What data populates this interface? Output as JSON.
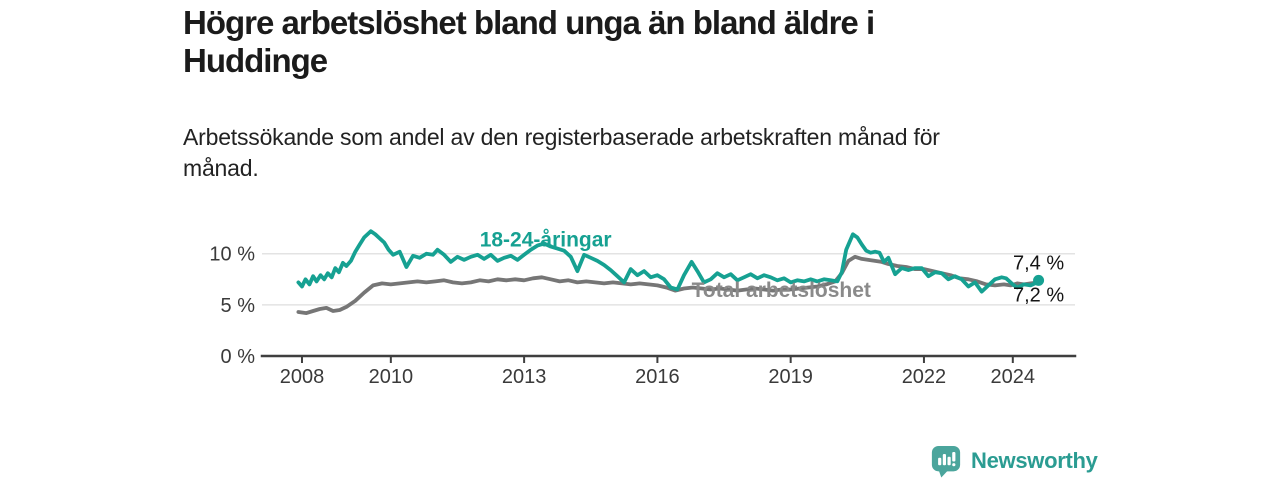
{
  "header": {
    "title_lines": [
      "Högre arbetslöshet bland unga än bland äldre i",
      "Huddinge"
    ],
    "subtitle_lines": [
      "Arbetssökande som andel av den registerbaserade arbetskraften månad för",
      "månad."
    ]
  },
  "branding": {
    "name": "Newsworthy",
    "logo_icon": "bar-chart-speech-bubble-icon",
    "text_color": "#2b9c92",
    "bubble_color": "#4ba59c"
  },
  "chart_data": {
    "type": "line",
    "title": "Högre arbetslöshet bland unga än bland äldre i Huddinge",
    "subtitle": "Arbetssökande som andel av den registerbaserade arbetskraften månad för månad.",
    "x_axis": {
      "range": [
        2007.1,
        2025.4
      ],
      "ticks": [
        2008,
        2010,
        2013,
        2016,
        2019,
        2022,
        2024
      ]
    },
    "y_axis": {
      "range": [
        0,
        13.3
      ],
      "ticks": [
        0,
        5,
        10
      ],
      "tick_labels": [
        "0 %",
        "5 %",
        "10 %"
      ],
      "gridlines": [
        5,
        10
      ]
    },
    "style": {
      "axis_color": "#3f3f3f",
      "grid_color": "#e3e3e3",
      "tick_label_color": "#3a3a3a",
      "value_label_color": "#141414"
    },
    "legend_position": "inline-labels",
    "series": [
      {
        "id": "total",
        "name": "Total arbetslöshet",
        "color": "#767676",
        "label_color": "#8a8a8a",
        "label_anchor": [
          2016.77,
          5.78
        ],
        "end_label": "7,2 %",
        "end_label_side": "below",
        "end_dot": false,
        "points": [
          [
            2007.92,
            4.3
          ],
          [
            2008.1,
            4.2
          ],
          [
            2008.25,
            4.4
          ],
          [
            2008.4,
            4.6
          ],
          [
            2008.55,
            4.7
          ],
          [
            2008.7,
            4.4
          ],
          [
            2008.85,
            4.5
          ],
          [
            2009.0,
            4.8
          ],
          [
            2009.2,
            5.4
          ],
          [
            2009.4,
            6.2
          ],
          [
            2009.6,
            6.9
          ],
          [
            2009.8,
            7.1
          ],
          [
            2010.0,
            7.0
          ],
          [
            2010.2,
            7.1
          ],
          [
            2010.4,
            7.2
          ],
          [
            2010.6,
            7.3
          ],
          [
            2010.8,
            7.2
          ],
          [
            2011.0,
            7.3
          ],
          [
            2011.2,
            7.4
          ],
          [
            2011.4,
            7.2
          ],
          [
            2011.6,
            7.1
          ],
          [
            2011.8,
            7.2
          ],
          [
            2012.0,
            7.4
          ],
          [
            2012.2,
            7.3
          ],
          [
            2012.4,
            7.5
          ],
          [
            2012.6,
            7.4
          ],
          [
            2012.8,
            7.5
          ],
          [
            2013.0,
            7.4
          ],
          [
            2013.2,
            7.6
          ],
          [
            2013.4,
            7.7
          ],
          [
            2013.6,
            7.5
          ],
          [
            2013.8,
            7.3
          ],
          [
            2014.0,
            7.4
          ],
          [
            2014.2,
            7.2
          ],
          [
            2014.4,
            7.3
          ],
          [
            2014.6,
            7.2
          ],
          [
            2014.8,
            7.1
          ],
          [
            2015.0,
            7.2
          ],
          [
            2015.2,
            7.1
          ],
          [
            2015.4,
            7.0
          ],
          [
            2015.6,
            7.1
          ],
          [
            2015.8,
            7.0
          ],
          [
            2016.0,
            6.9
          ],
          [
            2016.2,
            6.7
          ],
          [
            2016.4,
            6.4
          ],
          [
            2016.6,
            6.6
          ],
          [
            2016.8,
            6.7
          ],
          [
            2017.0,
            6.6
          ],
          [
            2017.2,
            6.5
          ],
          [
            2017.4,
            6.6
          ],
          [
            2017.6,
            6.5
          ],
          [
            2017.8,
            6.4
          ],
          [
            2018.0,
            6.5
          ],
          [
            2018.2,
            6.6
          ],
          [
            2018.4,
            6.5
          ],
          [
            2018.6,
            6.4
          ],
          [
            2018.8,
            6.5
          ],
          [
            2019.0,
            6.5
          ],
          [
            2019.2,
            6.6
          ],
          [
            2019.4,
            6.7
          ],
          [
            2019.6,
            6.8
          ],
          [
            2019.8,
            7.0
          ],
          [
            2020.0,
            7.3
          ],
          [
            2020.15,
            8.1
          ],
          [
            2020.3,
            9.3
          ],
          [
            2020.45,
            9.7
          ],
          [
            2020.6,
            9.5
          ],
          [
            2020.75,
            9.4
          ],
          [
            2020.9,
            9.3
          ],
          [
            2021.05,
            9.2
          ],
          [
            2021.2,
            9.0
          ],
          [
            2021.4,
            8.8
          ],
          [
            2021.6,
            8.7
          ],
          [
            2021.8,
            8.5
          ],
          [
            2022.0,
            8.5
          ],
          [
            2022.2,
            8.3
          ],
          [
            2022.4,
            8.1
          ],
          [
            2022.6,
            7.9
          ],
          [
            2022.8,
            7.6
          ],
          [
            2023.0,
            7.5
          ],
          [
            2023.2,
            7.3
          ],
          [
            2023.4,
            7.0
          ],
          [
            2023.6,
            6.9
          ],
          [
            2023.8,
            7.0
          ],
          [
            2023.95,
            6.9
          ],
          [
            2024.1,
            7.1
          ],
          [
            2024.25,
            7.0
          ],
          [
            2024.4,
            7.1
          ],
          [
            2024.58,
            7.2
          ]
        ]
      },
      {
        "id": "youth",
        "name": "18-24-åringar",
        "color": "#16a192",
        "label_color": "#16a192",
        "label_anchor": [
          2012.0,
          10.7
        ],
        "end_label": "7,4 %",
        "end_label_side": "above",
        "end_dot": true,
        "points": [
          [
            2007.92,
            7.2
          ],
          [
            2008.0,
            6.8
          ],
          [
            2008.08,
            7.5
          ],
          [
            2008.17,
            7.0
          ],
          [
            2008.25,
            7.8
          ],
          [
            2008.33,
            7.3
          ],
          [
            2008.42,
            7.9
          ],
          [
            2008.5,
            7.5
          ],
          [
            2008.58,
            8.1
          ],
          [
            2008.67,
            7.7
          ],
          [
            2008.75,
            8.6
          ],
          [
            2008.83,
            8.2
          ],
          [
            2008.92,
            9.1
          ],
          [
            2009.0,
            8.8
          ],
          [
            2009.1,
            9.3
          ],
          [
            2009.2,
            10.2
          ],
          [
            2009.3,
            10.9
          ],
          [
            2009.4,
            11.6
          ],
          [
            2009.55,
            12.2
          ],
          [
            2009.65,
            11.9
          ],
          [
            2009.75,
            11.5
          ],
          [
            2009.85,
            11.1
          ],
          [
            2009.95,
            10.4
          ],
          [
            2010.05,
            9.9
          ],
          [
            2010.2,
            10.2
          ],
          [
            2010.35,
            8.7
          ],
          [
            2010.5,
            9.8
          ],
          [
            2010.65,
            9.6
          ],
          [
            2010.8,
            10.0
          ],
          [
            2010.95,
            9.9
          ],
          [
            2011.05,
            10.4
          ],
          [
            2011.2,
            9.9
          ],
          [
            2011.35,
            9.2
          ],
          [
            2011.5,
            9.7
          ],
          [
            2011.65,
            9.4
          ],
          [
            2011.8,
            9.7
          ],
          [
            2011.95,
            9.9
          ],
          [
            2012.1,
            9.5
          ],
          [
            2012.25,
            9.9
          ],
          [
            2012.4,
            9.3
          ],
          [
            2012.55,
            9.6
          ],
          [
            2012.7,
            9.8
          ],
          [
            2012.85,
            9.4
          ],
          [
            2013.0,
            9.9
          ],
          [
            2013.15,
            10.4
          ],
          [
            2013.3,
            10.8
          ],
          [
            2013.45,
            11.0
          ],
          [
            2013.6,
            10.7
          ],
          [
            2013.75,
            10.5
          ],
          [
            2013.9,
            10.3
          ],
          [
            2014.05,
            9.7
          ],
          [
            2014.2,
            8.3
          ],
          [
            2014.35,
            9.9
          ],
          [
            2014.5,
            9.6
          ],
          [
            2014.65,
            9.3
          ],
          [
            2014.8,
            8.9
          ],
          [
            2014.95,
            8.4
          ],
          [
            2015.1,
            7.8
          ],
          [
            2015.25,
            7.2
          ],
          [
            2015.4,
            8.5
          ],
          [
            2015.55,
            7.9
          ],
          [
            2015.7,
            8.3
          ],
          [
            2015.85,
            7.7
          ],
          [
            2016.0,
            7.9
          ],
          [
            2016.15,
            7.5
          ],
          [
            2016.3,
            6.7
          ],
          [
            2016.45,
            6.5
          ],
          [
            2016.6,
            7.9
          ],
          [
            2016.77,
            9.2
          ],
          [
            2016.9,
            8.3
          ],
          [
            2017.05,
            7.2
          ],
          [
            2017.2,
            7.5
          ],
          [
            2017.35,
            8.1
          ],
          [
            2017.5,
            7.7
          ],
          [
            2017.65,
            8.0
          ],
          [
            2017.8,
            7.4
          ],
          [
            2017.95,
            7.7
          ],
          [
            2018.1,
            8.0
          ],
          [
            2018.25,
            7.6
          ],
          [
            2018.4,
            7.9
          ],
          [
            2018.55,
            7.7
          ],
          [
            2018.7,
            7.4
          ],
          [
            2018.85,
            7.6
          ],
          [
            2019.0,
            7.2
          ],
          [
            2019.15,
            7.4
          ],
          [
            2019.3,
            7.3
          ],
          [
            2019.45,
            7.5
          ],
          [
            2019.6,
            7.3
          ],
          [
            2019.75,
            7.5
          ],
          [
            2019.9,
            7.4
          ],
          [
            2020.05,
            7.3
          ],
          [
            2020.15,
            8.2
          ],
          [
            2020.25,
            10.4
          ],
          [
            2020.4,
            11.9
          ],
          [
            2020.5,
            11.6
          ],
          [
            2020.6,
            10.9
          ],
          [
            2020.7,
            10.3
          ],
          [
            2020.8,
            10.1
          ],
          [
            2020.9,
            10.2
          ],
          [
            2021.0,
            10.1
          ],
          [
            2021.1,
            9.2
          ],
          [
            2021.2,
            9.6
          ],
          [
            2021.35,
            8.0
          ],
          [
            2021.5,
            8.6
          ],
          [
            2021.65,
            8.4
          ],
          [
            2021.8,
            8.6
          ],
          [
            2021.95,
            8.6
          ],
          [
            2022.1,
            7.8
          ],
          [
            2022.25,
            8.2
          ],
          [
            2022.4,
            8.1
          ],
          [
            2022.55,
            7.5
          ],
          [
            2022.7,
            7.8
          ],
          [
            2022.85,
            7.5
          ],
          [
            2023.0,
            6.8
          ],
          [
            2023.15,
            7.2
          ],
          [
            2023.3,
            6.3
          ],
          [
            2023.45,
            6.9
          ],
          [
            2023.6,
            7.5
          ],
          [
            2023.75,
            7.7
          ],
          [
            2023.85,
            7.6
          ],
          [
            2024.0,
            7.0
          ],
          [
            2024.1,
            6.7
          ],
          [
            2024.25,
            7.0
          ],
          [
            2024.4,
            6.9
          ],
          [
            2024.5,
            7.1
          ],
          [
            2024.58,
            7.4
          ]
        ]
      }
    ]
  }
}
